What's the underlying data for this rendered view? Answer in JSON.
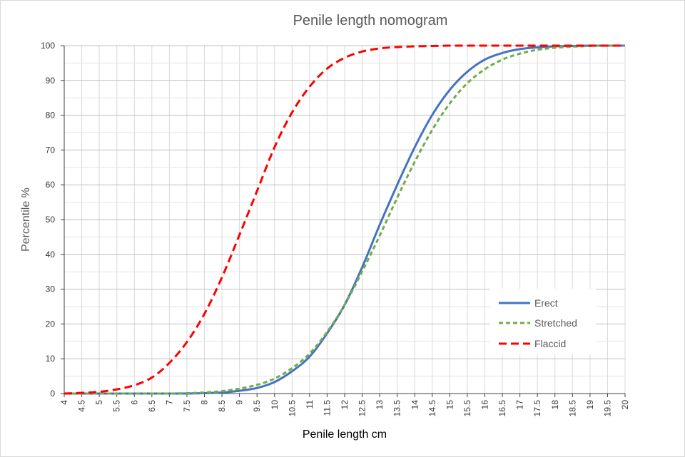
{
  "chart_data": {
    "type": "line",
    "title": "Penile length nomogram",
    "xlabel": "Penile length cm",
    "ylabel": "Percentile %",
    "xlim": [
      4,
      20
    ],
    "ylim": [
      0,
      100
    ],
    "x_ticks": [
      "4",
      "4.5",
      "5",
      "5.5",
      "6",
      "6.5",
      "7",
      "7.5",
      "8",
      "8.5",
      "9",
      "9.5",
      "10",
      "10.5",
      "11",
      "11.5",
      "12",
      "12.5",
      "13",
      "13.5",
      "14",
      "14.5",
      "15",
      "15.5",
      "16",
      "16.5",
      "17",
      "17.5",
      "18",
      "18.5",
      "19",
      "19.5",
      "20"
    ],
    "y_ticks": [
      "0",
      "10",
      "20",
      "30",
      "40",
      "50",
      "60",
      "70",
      "80",
      "90",
      "100"
    ],
    "grid": true,
    "legend_position": "bottom-right",
    "x": [
      4,
      4.5,
      5,
      5.5,
      6,
      6.5,
      7,
      7.5,
      8,
      8.5,
      9,
      9.5,
      10,
      10.5,
      11,
      11.5,
      12,
      12.5,
      13,
      13.5,
      14,
      14.5,
      15,
      15.5,
      16,
      16.5,
      17,
      17.5,
      18,
      18.5,
      19,
      19.5,
      20
    ],
    "series": [
      {
        "name": "Erect",
        "color": "#4472c4",
        "style": "solid",
        "values": [
          0,
          0,
          0,
          0,
          0,
          0,
          0,
          0,
          0.1,
          0.3,
          0.8,
          1.6,
          3.3,
          6.4,
          10.6,
          17.3,
          25.5,
          36.3,
          48.5,
          60,
          70.8,
          80.1,
          87.3,
          92.5,
          96,
          97.9,
          99,
          99.5,
          99.8,
          99.9,
          100,
          100,
          100
        ]
      },
      {
        "name": "Stretched",
        "color": "#70ad47",
        "style": "dashed",
        "values": [
          0,
          0,
          0,
          0,
          0,
          0,
          0,
          0.1,
          0.3,
          0.7,
          1.4,
          2.5,
          4.3,
          7.3,
          11.5,
          17.7,
          25.5,
          35.1,
          45.4,
          56.3,
          66.6,
          75.8,
          83.4,
          89.2,
          93.2,
          96,
          97.7,
          98.8,
          99.4,
          99.7,
          99.9,
          100,
          100
        ]
      },
      {
        "name": "Flaccid",
        "color": "#ff0000",
        "style": "dashed",
        "values": [
          0,
          0.2,
          0.5,
          1.2,
          2.4,
          4.6,
          8.8,
          14.8,
          22.9,
          33.4,
          45.6,
          58.2,
          70.8,
          80.8,
          88.2,
          93.4,
          96.5,
          98.3,
          99.2,
          99.6,
          99.8,
          99.9,
          100,
          100,
          100,
          100,
          100,
          100,
          100,
          100,
          100,
          100,
          100
        ]
      }
    ]
  }
}
